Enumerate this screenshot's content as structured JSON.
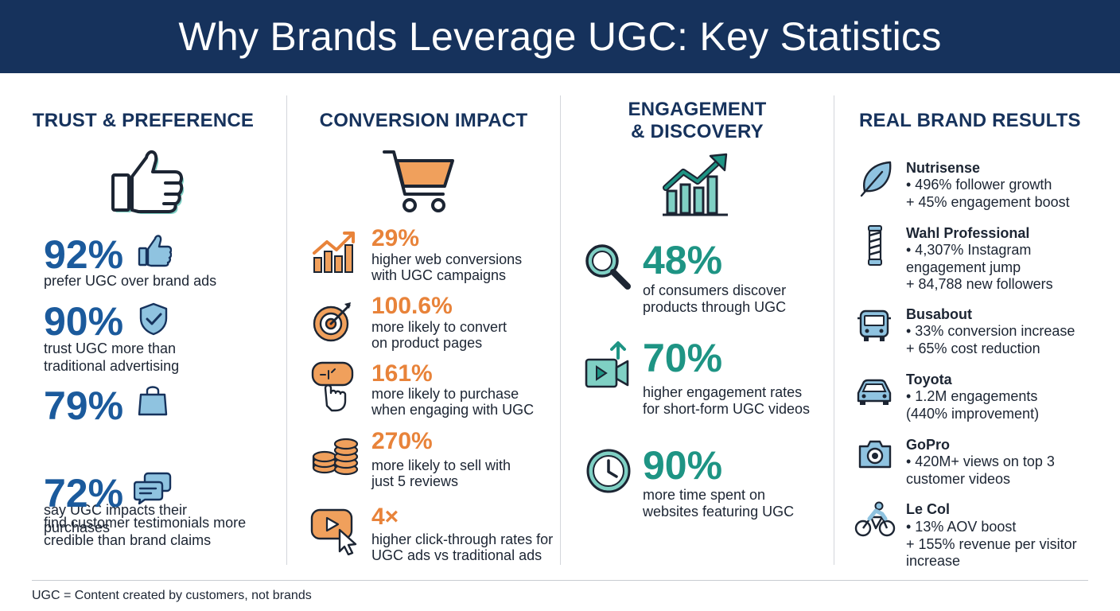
{
  "header": {
    "title": "Why Brands Leverage UGC: Key Statistics"
  },
  "columns": {
    "trust": {
      "title": "TRUST & PREFERENCE",
      "stats": [
        {
          "value": "92%",
          "desc1": "prefer UGC over brand ads",
          "desc2": "",
          "icon": "thumbs-up-icon"
        },
        {
          "value": "90%",
          "desc1": "trust UGC more than",
          "desc2": "traditional advertising",
          "icon": "shield-check-icon"
        },
        {
          "value": "79%",
          "desc1": "say UGC impacts their",
          "desc2": "purchases",
          "icon": "shopping-bag-icon"
        },
        {
          "value": "72%",
          "desc1": "find customer testimonials more",
          "desc2": "credible than brand claims",
          "icon": "chat-bubbles-icon"
        }
      ]
    },
    "conversion": {
      "title": "CONVERSION IMPACT",
      "stats": [
        {
          "value": "29%",
          "desc1": "higher web conversions",
          "desc2": "with UGC campaigns",
          "icon": "growth-chart-icon"
        },
        {
          "value": "100.6%",
          "desc1": "more likely to convert",
          "desc2": "on product pages",
          "icon": "target-icon"
        },
        {
          "value": "161%",
          "desc1": "more likely to purchase",
          "desc2": "when engaging with UGC",
          "icon": "click-button-icon"
        },
        {
          "value": "270%",
          "desc1": "more likely to sell with",
          "desc2": "just 5 reviews",
          "icon": "coin-stack-icon"
        },
        {
          "value": "4×",
          "desc1": "higher click-through rates for",
          "desc2": "UGC ads vs traditional ads",
          "icon": "video-click-icon"
        }
      ]
    },
    "engagement": {
      "title1": "ENGAGEMENT",
      "title2": "& DISCOVERY",
      "stats": [
        {
          "value": "48%",
          "desc1": "of consumers discover",
          "desc2": "products through UGC",
          "icon": "magnifier-icon"
        },
        {
          "value": "70%",
          "desc1": "higher engagement rates",
          "desc2": "for short-form UGC videos",
          "icon": "video-upload-icon"
        },
        {
          "value": "90%",
          "desc1": "more time spent on",
          "desc2": "websites featuring UGC",
          "icon": "clock-icon"
        }
      ]
    },
    "brands": {
      "title": "REAL BRAND RESULTS",
      "items": [
        {
          "name": "Nutrisense",
          "lines": [
            "• 496% follower growth",
            "+ 45% engagement boost"
          ],
          "icon": "leaf-icon"
        },
        {
          "name": "Wahl Professional",
          "lines": [
            "• 4,307% Instagram",
            "   engagement jump",
            "+ 84,788 new followers"
          ],
          "icon": "barber-pole-icon"
        },
        {
          "name": "Busabout",
          "lines": [
            "• 33% conversion increase",
            "+ 65% cost reduction"
          ],
          "icon": "bus-icon"
        },
        {
          "name": "Toyota",
          "lines": [
            "• 1.2M engagements",
            "   (440% improvement)"
          ],
          "icon": "car-icon"
        },
        {
          "name": "GoPro",
          "lines": [
            "• 420M+ views on top 3",
            "   customer videos"
          ],
          "icon": "camera-icon"
        },
        {
          "name": "Le Col",
          "lines": [
            "• 13% AOV boost",
            "+ 155% revenue per visitor",
            "   increase"
          ],
          "icon": "cyclist-icon"
        }
      ]
    }
  },
  "footer": {
    "note": "UGC = Content created by customers, not brands"
  },
  "colors": {
    "navy": "#16325c",
    "blue": "#1b5a9c",
    "orange": "#e8833a",
    "teal": "#1e9484",
    "light_blue": "#8fc3e0",
    "light_teal": "#7fd0c4"
  }
}
